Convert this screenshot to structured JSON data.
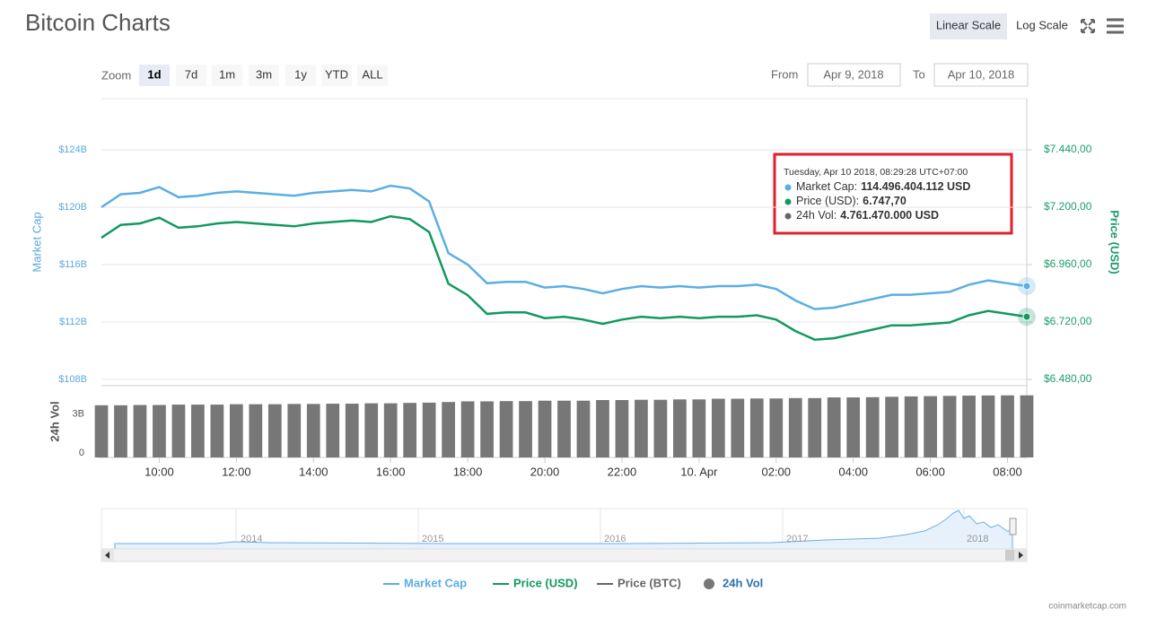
{
  "header": {
    "title": "Bitcoin Charts",
    "scale_buttons": [
      "Linear Scale",
      "Log Scale"
    ],
    "selected_scale": 0
  },
  "zoom": {
    "label": "Zoom",
    "buttons": [
      "1d",
      "7d",
      "1m",
      "3m",
      "1y",
      "YTD",
      "ALL"
    ],
    "selected": 0
  },
  "range": {
    "from_label": "From",
    "from": "Apr 9, 2018",
    "to_label": "To",
    "to": "Apr 10, 2018"
  },
  "chart_data": {
    "type": "line",
    "log_scale": false,
    "grid": true,
    "ylabel": "Market Cap",
    "y2label": "Price (USD)",
    "y3label": "24h Vol",
    "x": [
      8.5,
      9,
      9.5,
      10,
      10.5,
      11,
      11.5,
      12,
      12.5,
      13,
      13.5,
      14,
      14.5,
      15,
      15.5,
      16,
      16.5,
      17,
      17.5,
      18,
      18.5,
      19,
      19.5,
      20,
      20.5,
      21,
      21.5,
      22,
      22.5,
      23,
      23.5,
      24,
      24.5,
      25,
      25.5,
      26,
      26.5,
      27,
      27.5,
      28,
      28.5,
      29,
      29.5,
      30,
      30.5,
      31,
      31.5,
      32,
      32.5
    ],
    "xlim": [
      8.5,
      32.5
    ],
    "xticks": [
      {
        "value": 10,
        "label": "10:00"
      },
      {
        "value": 12,
        "label": "12:00"
      },
      {
        "value": 14,
        "label": "14:00"
      },
      {
        "value": 16,
        "label": "16:00"
      },
      {
        "value": 18,
        "label": "18:00"
      },
      {
        "value": 20,
        "label": "20:00"
      },
      {
        "value": 22,
        "label": "22:00"
      },
      {
        "value": 24,
        "label": "10. Apr"
      },
      {
        "value": 26,
        "label": "02:00"
      },
      {
        "value": 28,
        "label": "04:00"
      },
      {
        "value": 30,
        "label": "06:00"
      },
      {
        "value": 32,
        "label": "08:00"
      }
    ],
    "ylim": [
      108,
      127.56
    ],
    "yticks": [
      {
        "value": 108,
        "label": "$108B"
      },
      {
        "value": 112,
        "label": "$112B"
      },
      {
        "value": 116,
        "label": "$116B"
      },
      {
        "value": 120,
        "label": "$120B"
      },
      {
        "value": 124,
        "label": "$124B"
      }
    ],
    "y2lim": [
      6480,
      7653.75
    ],
    "y2ticks": [
      {
        "value": 6480,
        "label": "$6.480,00"
      },
      {
        "value": 6720,
        "label": "$6.720,00"
      },
      {
        "value": 6960,
        "label": "$6.960,00"
      },
      {
        "value": 7200,
        "label": "$7.200,00"
      },
      {
        "value": 7440,
        "label": "$7.440,00"
      }
    ],
    "y3lim": [
      0,
      5.5
    ],
    "y3ticks": [
      0,
      {
        "value": 3,
        "label": "3B"
      }
    ],
    "series": [
      {
        "name": "Market Cap",
        "color": "#5aafe3",
        "values": [
          120.0,
          120.9,
          121.0,
          121.4,
          120.7,
          120.8,
          121.0,
          121.1,
          121.0,
          120.9,
          120.8,
          121.0,
          121.1,
          121.2,
          121.1,
          121.5,
          121.3,
          120.4,
          116.8,
          116.0,
          114.7,
          114.8,
          114.8,
          114.4,
          114.5,
          114.3,
          114.0,
          114.3,
          114.5,
          114.4,
          114.5,
          114.4,
          114.5,
          114.5,
          114.6,
          114.3,
          113.5,
          112.9,
          113.0,
          113.3,
          113.6,
          113.9,
          113.9,
          114.0,
          114.1,
          114.6,
          114.9,
          114.7,
          114.5
        ]
      },
      {
        "name": "Price (USD)",
        "color": "#12995f",
        "axis": "y2",
        "values": [
          7072,
          7126,
          7132,
          7156,
          7114,
          7120,
          7132,
          7138,
          7132,
          7126,
          7120,
          7132,
          7138,
          7144,
          7138,
          7162,
          7150,
          7096,
          6880,
          6832,
          6754,
          6760,
          6760,
          6736,
          6742,
          6730,
          6712,
          6730,
          6742,
          6736,
          6742,
          6736,
          6742,
          6742,
          6748,
          6730,
          6682,
          6646,
          6652,
          6670,
          6688,
          6706,
          6706,
          6712,
          6718,
          6748,
          6766,
          6754,
          6742
        ]
      },
      {
        "name": "24h Vol",
        "color": "#777777",
        "axis": "y3",
        "type": "bar",
        "values": [
          4.0,
          4.0,
          4.02,
          4.02,
          4.05,
          4.05,
          4.05,
          4.08,
          4.08,
          4.08,
          4.1,
          4.1,
          4.12,
          4.12,
          4.15,
          4.15,
          4.18,
          4.2,
          4.25,
          4.3,
          4.3,
          4.32,
          4.32,
          4.35,
          4.35,
          4.35,
          4.4,
          4.4,
          4.42,
          4.42,
          4.45,
          4.45,
          4.5,
          4.5,
          4.52,
          4.52,
          4.55,
          4.55,
          4.6,
          4.6,
          4.62,
          4.65,
          4.68,
          4.7,
          4.72,
          4.74,
          4.75,
          4.76,
          4.76
        ]
      }
    ],
    "hidden_series": [
      {
        "name": "Price (BTC)",
        "color": "#666666"
      }
    ]
  },
  "tooltip": {
    "title": "Tuesday, Apr 10 2018, 08:29:28 UTC+07:00",
    "rows": [
      {
        "label": "Market Cap:",
        "value": "114.496.404.112 USD",
        "color": "#5aafe3"
      },
      {
        "label": "Price (USD):",
        "value": "6.747,70",
        "color": "#12995f"
      },
      {
        "label": "24h Vol:",
        "value": "4.761.470.000 USD",
        "color": "#666666"
      }
    ]
  },
  "navigator": {
    "labels": [
      "2014",
      "2015",
      "2016",
      "2017",
      "2018"
    ]
  },
  "credit": "coinmarketcap.com"
}
